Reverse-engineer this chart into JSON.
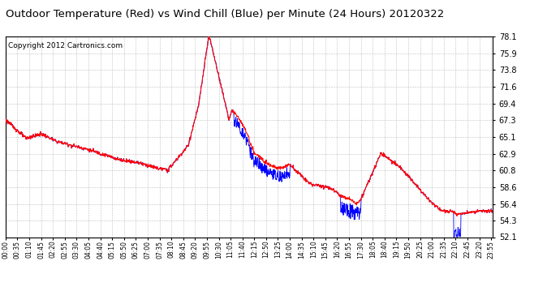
{
  "title": "Outdoor Temperature (Red) vs Wind Chill (Blue) per Minute (24 Hours) 20120322",
  "copyright_text": "Copyright 2012 Cartronics.com",
  "y_min": 52.1,
  "y_max": 78.1,
  "y_ticks": [
    52.1,
    54.3,
    56.4,
    58.6,
    60.8,
    62.9,
    65.1,
    67.3,
    69.4,
    71.6,
    73.8,
    75.9,
    78.1
  ],
  "red_color": "#ff0000",
  "blue_color": "#0000ff",
  "bg_color": "#ffffff",
  "grid_color": "#b0b0b0",
  "title_fontsize": 10,
  "copyright_fontsize": 7,
  "x_tick_labels": [
    "00:00",
    "00:35",
    "01:10",
    "01:45",
    "02:20",
    "02:55",
    "03:30",
    "04:05",
    "04:40",
    "05:15",
    "05:50",
    "06:25",
    "07:00",
    "07:35",
    "08:10",
    "08:45",
    "09:20",
    "09:55",
    "10:30",
    "11:05",
    "11:40",
    "12:15",
    "12:50",
    "13:25",
    "14:00",
    "14:35",
    "15:10",
    "15:45",
    "16:20",
    "16:55",
    "17:30",
    "18:05",
    "18:40",
    "19:15",
    "19:50",
    "20:25",
    "21:00",
    "21:35",
    "22:10",
    "22:45",
    "23:20",
    "23:55"
  ],
  "x_tick_positions": [
    0,
    35,
    70,
    105,
    140,
    175,
    210,
    245,
    280,
    315,
    350,
    385,
    420,
    455,
    490,
    525,
    560,
    595,
    630,
    665,
    700,
    735,
    770,
    805,
    840,
    875,
    910,
    945,
    980,
    1015,
    1050,
    1085,
    1120,
    1155,
    1190,
    1225,
    1260,
    1295,
    1330,
    1365,
    1400,
    1435
  ]
}
